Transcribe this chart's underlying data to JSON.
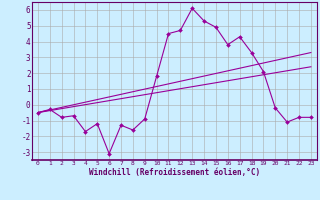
{
  "xlabel": "Windchill (Refroidissement éolien,°C)",
  "bg_color": "#cceeff",
  "line_color": "#990099",
  "grid_color": "#aaaaaa",
  "xlim": [
    -0.5,
    23.5
  ],
  "ylim": [
    -3.5,
    6.5
  ],
  "xticks": [
    0,
    1,
    2,
    3,
    4,
    5,
    6,
    7,
    8,
    9,
    10,
    11,
    12,
    13,
    14,
    15,
    16,
    17,
    18,
    19,
    20,
    21,
    22,
    23
  ],
  "yticks": [
    -3,
    -2,
    -1,
    0,
    1,
    2,
    3,
    4,
    5,
    6
  ],
  "zigzag_x": [
    0,
    1,
    2,
    3,
    4,
    5,
    6,
    7,
    8,
    9,
    10,
    11,
    12,
    13,
    14,
    15,
    16,
    17,
    18,
    19,
    20,
    21,
    22,
    23
  ],
  "zigzag_y": [
    -0.5,
    -0.3,
    -0.8,
    -0.7,
    -1.7,
    -1.2,
    -3.1,
    -1.3,
    -1.6,
    -0.9,
    1.8,
    4.5,
    4.7,
    6.1,
    5.3,
    4.9,
    3.8,
    4.3,
    3.3,
    2.1,
    -0.2,
    -1.1,
    -0.8,
    -0.8
  ],
  "line1_x": [
    0,
    23
  ],
  "line1_y": [
    -0.5,
    3.3
  ],
  "line2_x": [
    0,
    23
  ],
  "line2_y": [
    -0.5,
    2.4
  ]
}
